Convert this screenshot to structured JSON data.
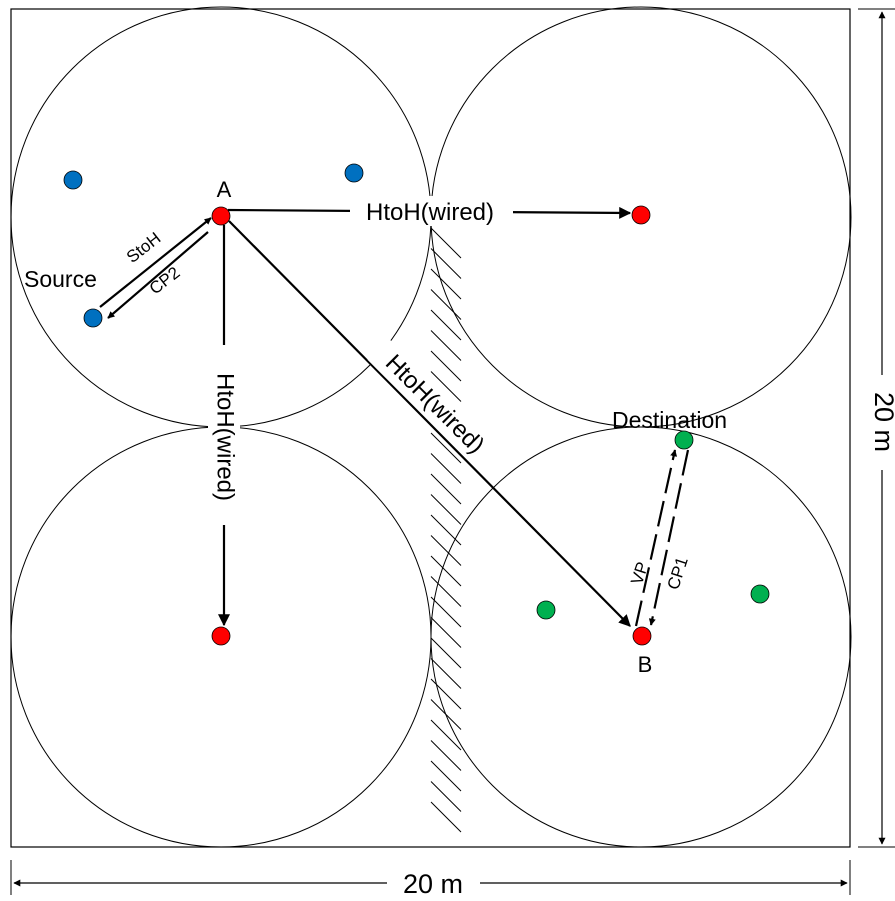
{
  "labels": {
    "node_a": "A",
    "node_b": "B",
    "source": "Source",
    "destination": "Destination",
    "sto_h": "StoH",
    "cp2": "CP2",
    "vp": "VP",
    "cp1": "CP1",
    "hto_h_top": "HtoH(wired)",
    "hto_h_vertical": "HtoH(wired)",
    "hto_h_diagonal": "HtoH(wired)",
    "width_dim": "20 m",
    "height_dim": "20 m"
  },
  "colors": {
    "head_node": "#ff0000",
    "source_cluster_node": "#0070c0",
    "destination_cluster_node": "#00b050",
    "line": "#000000"
  },
  "nodes": [
    {
      "name": "head-node-a",
      "role": "cluster head",
      "color": "head_node"
    },
    {
      "name": "head-node-top-right",
      "role": "cluster head",
      "color": "head_node"
    },
    {
      "name": "head-node-bottom-left",
      "role": "cluster head",
      "color": "head_node"
    },
    {
      "name": "head-node-b",
      "role": "cluster head",
      "color": "head_node"
    },
    {
      "name": "source-node",
      "role": "source",
      "color": "source_cluster_node"
    },
    {
      "name": "blue-node-1",
      "role": "member",
      "color": "source_cluster_node"
    },
    {
      "name": "blue-node-2",
      "role": "member",
      "color": "source_cluster_node"
    },
    {
      "name": "destination-node",
      "role": "destination",
      "color": "destination_cluster_node"
    },
    {
      "name": "green-node-1",
      "role": "member",
      "color": "destination_cluster_node"
    },
    {
      "name": "green-node-2",
      "role": "member",
      "color": "destination_cluster_node"
    }
  ]
}
